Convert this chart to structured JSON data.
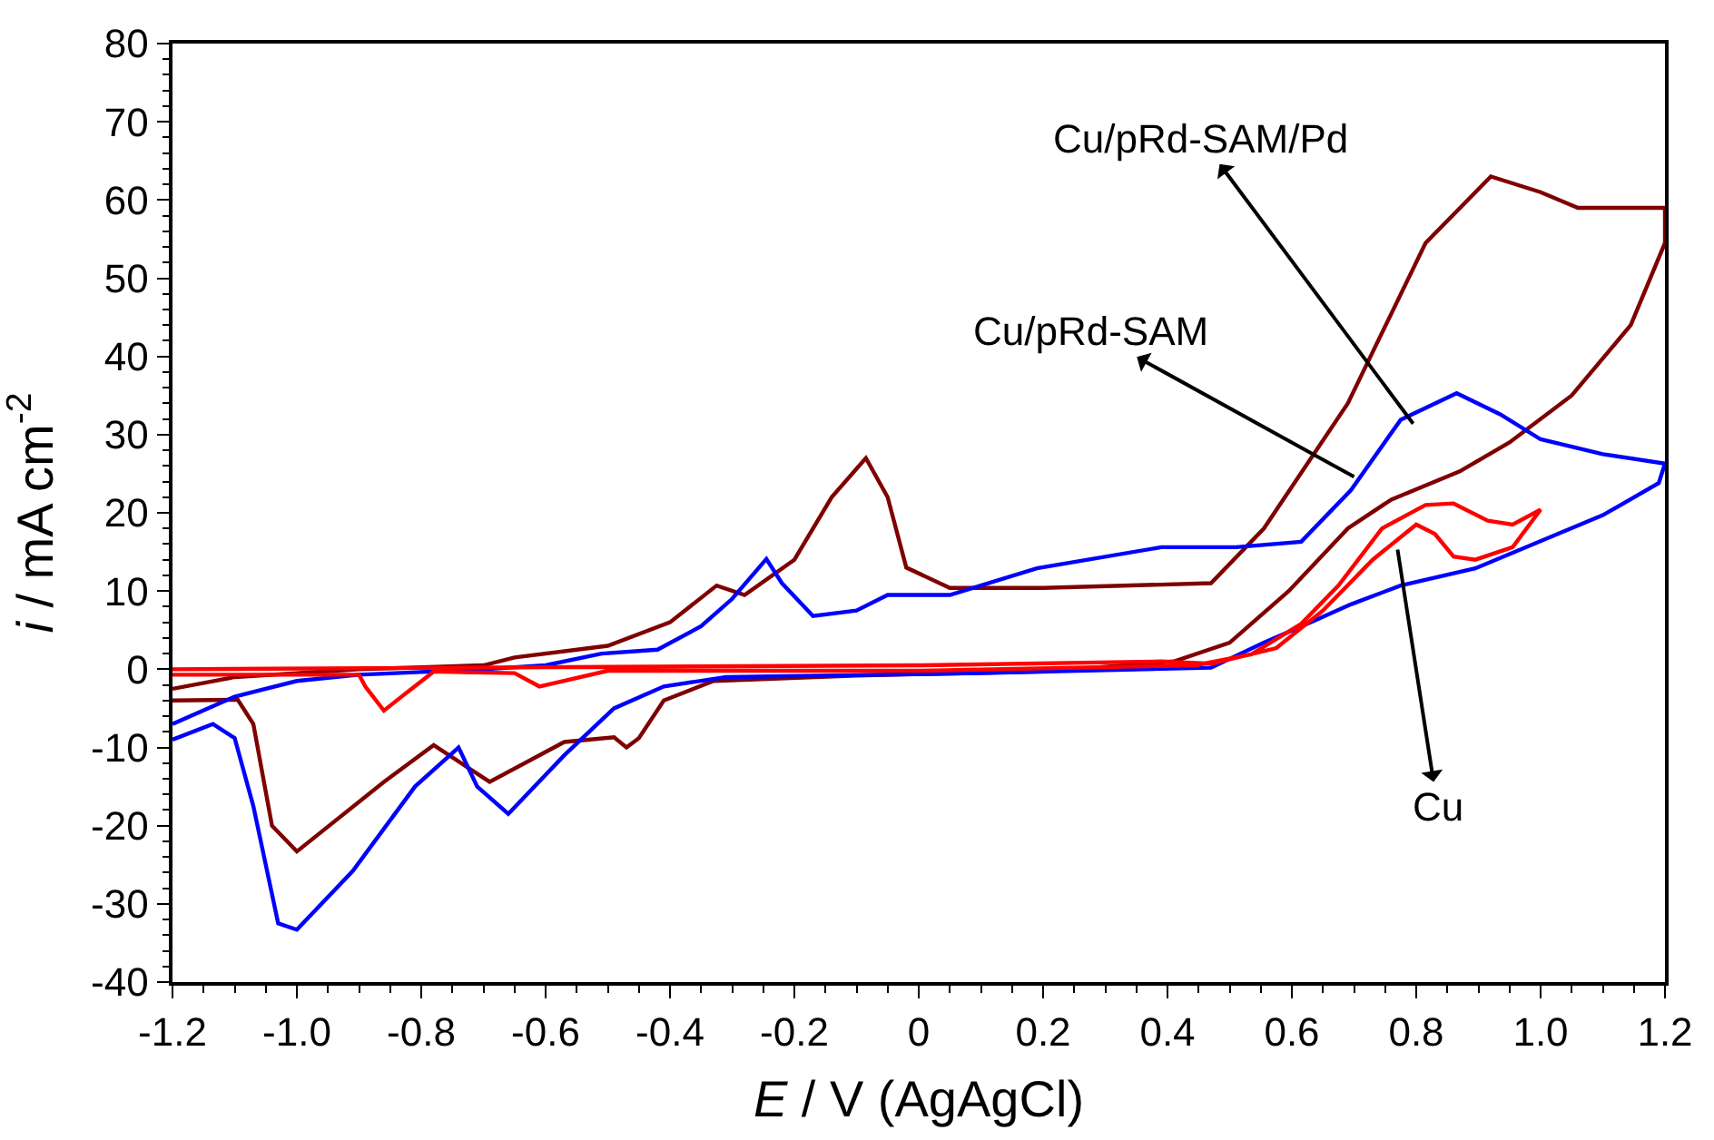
{
  "chart_data": {
    "type": "line",
    "xlabel": "E / V (AgAgCl)",
    "ylabel": "i / mA cm$^{-2}$",
    "xlim": [
      -1.2,
      1.2
    ],
    "ylim": [
      -40,
      80
    ],
    "xticks": [
      -1.2,
      {
        "value": -1.0,
        "label": "-1.0"
      },
      -0.8,
      -0.6,
      -0.4,
      -0.2,
      0,
      0.2,
      0.4,
      0.6,
      0.8,
      {
        "value": 1.0,
        "label": "1.0"
      },
      1.2
    ],
    "yticks": [
      -40,
      -30,
      -20,
      -10,
      0,
      10,
      20,
      30,
      40,
      50,
      60,
      70,
      80
    ],
    "marker": "none",
    "line_style": "solid",
    "series": [
      {
        "color": "#7f0000",
        "x": [
          -1.2,
          -1.1,
          -0.9,
          -0.7,
          -0.65,
          -0.5,
          -0.4,
          -0.325,
          -0.28,
          -0.2,
          -0.14,
          -0.085,
          -0.05,
          -0.02,
          0.05,
          0.2,
          0.47,
          0.555,
          0.69,
          0.815,
          0.92,
          1.0,
          1.06,
          1.2,
          1.2,
          1.145,
          1.05,
          0.95,
          0.87,
          0.76,
          0.69,
          0.595,
          0.5,
          0.41,
          0.2,
          -0.1,
          -0.33,
          -0.41,
          -0.45,
          -0.47,
          -0.49,
          -0.57,
          -0.69,
          -0.78,
          -0.86,
          -1.0,
          -1.04,
          -1.07,
          -1.095,
          -1.2
        ],
        "values": [
          -2.5,
          -1,
          0,
          0.5,
          1.5,
          3,
          6,
          10.7,
          9.5,
          14,
          22,
          27,
          22,
          13,
          10.4,
          10.4,
          11,
          18,
          34,
          54.5,
          63,
          61,
          59,
          59,
          54.5,
          44,
          35,
          29,
          25.3,
          21.7,
          18,
          10,
          3.4,
          1,
          -0.3,
          -0.8,
          -1.5,
          -4,
          -8.8,
          -10,
          -8.7,
          -9.3,
          -14.4,
          -9.7,
          -14.4,
          -23.3,
          -20,
          -7,
          -3.9,
          -4
        ]
      },
      {
        "color": "#0000ff",
        "x": [
          -1.2,
          -1.1,
          -1.0,
          -0.9,
          -0.7,
          -0.6,
          -0.51,
          -0.42,
          -0.35,
          -0.3,
          -0.245,
          -0.22,
          -0.17,
          -0.1,
          -0.05,
          0.05,
          0.19,
          0.39,
          0.51,
          0.615,
          0.695,
          0.775,
          0.865,
          0.935,
          1.0,
          1.1,
          1.2,
          1.19,
          1.1,
          0.895,
          0.775,
          0.695,
          0.625,
          0.555,
          0.47,
          0.1,
          -0.31,
          -0.41,
          -0.49,
          -0.57,
          -0.66,
          -0.71,
          -0.74,
          -0.81,
          -0.91,
          -1.0,
          -1.03,
          -1.07,
          -1.1,
          -1.135,
          -1.2
        ],
        "values": [
          -7,
          -3.5,
          -1.5,
          -0.7,
          0,
          0.5,
          2,
          2.5,
          5.5,
          9,
          14.1,
          11,
          6.8,
          7.5,
          9.5,
          9.5,
          12.9,
          15.6,
          15.6,
          16.3,
          22.9,
          31.9,
          35.3,
          32.6,
          29.4,
          27.5,
          26.3,
          23.8,
          19.7,
          12.9,
          10.7,
          8.3,
          5.8,
          3.4,
          0.2,
          -0.5,
          -1,
          -2.2,
          -5,
          -11,
          -18.5,
          -15,
          -10,
          -15,
          -25.8,
          -33.3,
          -32.5,
          -17.5,
          -8.8,
          -7,
          -9
        ]
      },
      {
        "color": "#ff0000",
        "x": [
          -1.2,
          -0.5,
          0,
          0.39,
          0.47,
          0.575,
          0.65,
          0.73,
          0.8,
          0.83,
          0.86,
          0.895,
          0.955,
          1.0,
          0.955,
          0.915,
          0.86,
          0.815,
          0.745,
          0.675,
          0.615,
          0.535,
          0.445,
          0,
          -0.5,
          -0.61,
          -0.65,
          -0.78,
          -0.83,
          -0.86,
          -0.89,
          -0.9,
          -1.2
        ],
        "values": [
          0,
          0.3,
          0.5,
          1,
          0.7,
          2.7,
          7.5,
          14,
          18.5,
          17.3,
          14.4,
          14,
          15.6,
          20.4,
          18.5,
          19,
          21.2,
          21,
          18,
          10.7,
          5.8,
          1.9,
          0.5,
          -0.2,
          -0.2,
          -2.2,
          -0.5,
          -0.3,
          -3.4,
          -5.3,
          -2.2,
          -0.7,
          -0.7
        ]
      }
    ],
    "annotations": [
      {
        "text": "Cu/pRd-SAM/Pd",
        "x": 0.795,
        "y": 31.4
      },
      {
        "text": "Cu/pRd-SAM",
        "x": 0.7,
        "y": 24.6
      },
      {
        "text": "Cu",
        "x": 0.77,
        "y": 15.3
      }
    ]
  }
}
